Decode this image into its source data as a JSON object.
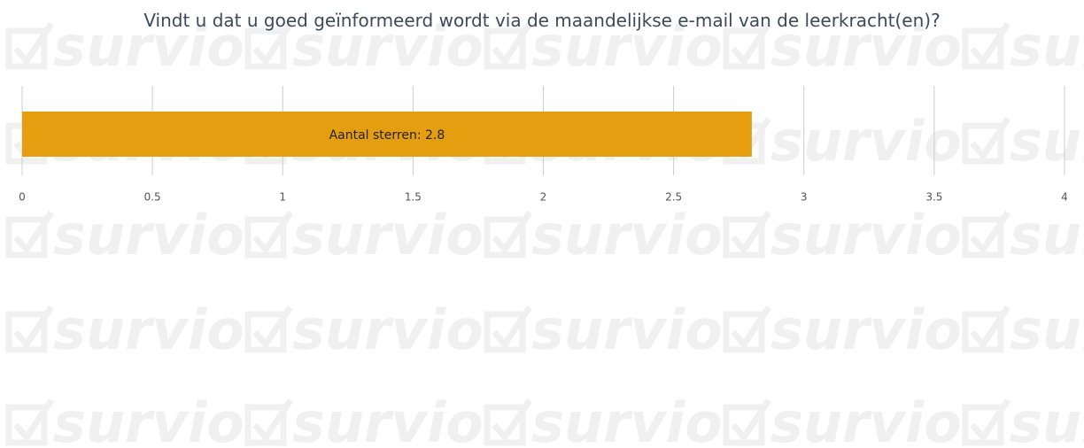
{
  "chart_data": {
    "type": "hbar",
    "title": "Vindt u dat u goed geïnformeerd wordt via de maandelijkse e-mail van de leerkracht(en)?",
    "watermark": "survio",
    "categories": [
      null
    ],
    "values": [
      2.8
    ],
    "value_labels": [
      "Aantal sterren: 2.8"
    ],
    "color": "#e59e0f",
    "xlim": [
      0,
      4
    ],
    "xticks": [
      0,
      0.5,
      1,
      1.5,
      2,
      2.5,
      3,
      3.5,
      4
    ],
    "grid": true
  }
}
